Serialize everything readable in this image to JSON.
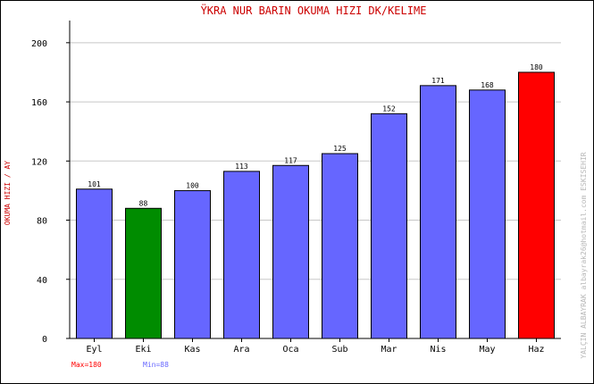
{
  "chart_data": {
    "type": "bar",
    "title": "ŸKRA NUR BARIN   OKUMA HIZI  DK/KELIME",
    "ylabel": "OKUMA HIZI / AY",
    "xlabel": "",
    "categories": [
      "Eyl",
      "Eki",
      "Kas",
      "Ara",
      "Oca",
      "Sub",
      "Mar",
      "Nis",
      "May",
      "Haz"
    ],
    "values": [
      101,
      88,
      100,
      113,
      117,
      125,
      152,
      171,
      168,
      180
    ],
    "data_labels": [
      "101",
      "88",
      "100",
      "113",
      "117",
      "125",
      "152",
      "171",
      "168",
      "180"
    ],
    "ylim": [
      0,
      215
    ],
    "yticks": [
      0,
      40,
      80,
      120,
      160,
      200
    ],
    "ytick_labels": [
      "0",
      "40",
      "80",
      "120",
      "160",
      "200"
    ],
    "grid": true,
    "bar_colors": [
      "#6666ff",
      "#008c00",
      "#6666ff",
      "#6666ff",
      "#6666ff",
      "#6666ff",
      "#6666ff",
      "#6666ff",
      "#6666ff",
      "#ff0000"
    ],
    "max_label": "Max=180",
    "min_label": "Min=88",
    "max_color": "#ff0000",
    "min_color": "#6666ff",
    "title_color": "#cc0000",
    "watermark": "YALÇIN ALBAYRAK    albayrak26@hotmail.com    ESKISEHIR"
  }
}
